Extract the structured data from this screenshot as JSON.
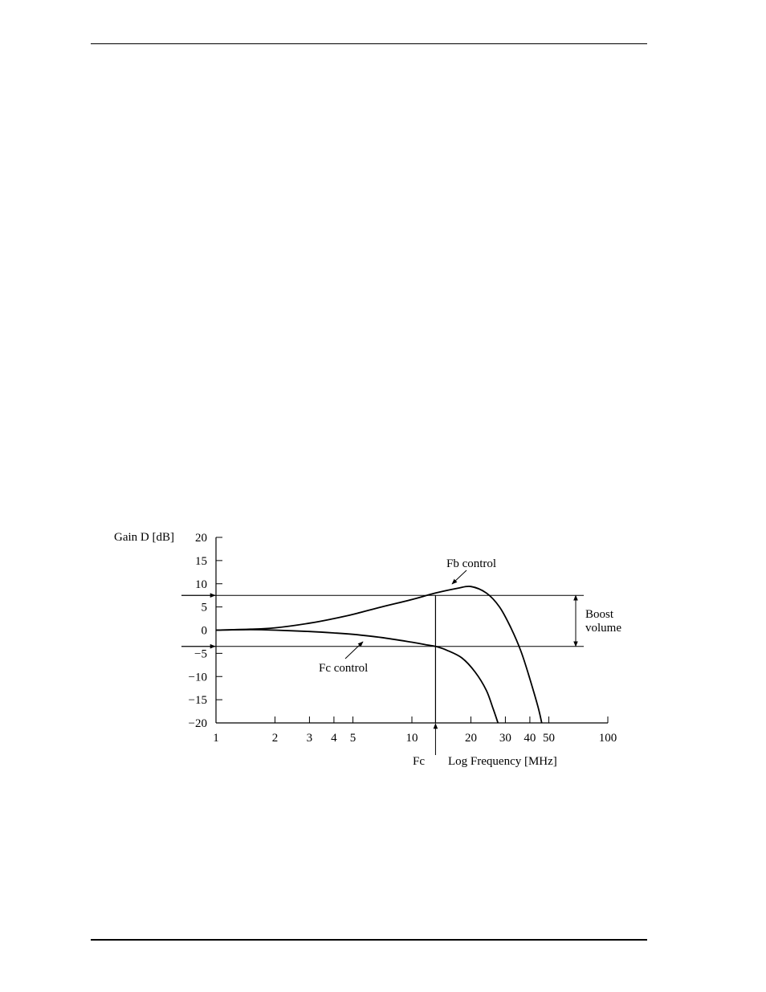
{
  "chart_data": {
    "type": "line",
    "title": "",
    "ylabel": "Gain D [dB]",
    "xlabel": "Log Frequency [MHz]",
    "x_scale": "log",
    "xlim": [
      1,
      100
    ],
    "ylim": [
      -20,
      20
    ],
    "x_ticks": [
      1,
      2,
      3,
      4,
      5,
      10,
      20,
      30,
      40,
      50,
      100
    ],
    "x_tick_labels": [
      "1",
      "2",
      "3",
      "4",
      "5",
      "10",
      "20",
      "30",
      "40",
      "50",
      "100"
    ],
    "y_ticks": [
      20,
      15,
      10,
      5,
      0,
      -5,
      -10,
      -15,
      -20
    ],
    "y_tick_labels": [
      "20",
      "15",
      "10",
      "5",
      "0",
      "−5",
      "−10",
      "−15",
      "−20"
    ],
    "series": [
      {
        "name": "Fb control",
        "x": [
          1,
          1.5,
          2,
          3,
          4,
          5,
          7,
          10,
          13.2,
          17,
          20,
          24,
          28,
          32,
          36,
          40,
          44,
          46
        ],
        "y": [
          0,
          0.2,
          0.5,
          1.5,
          2.5,
          3.4,
          5.0,
          6.6,
          8.0,
          9.0,
          9.4,
          8.0,
          5.0,
          0.5,
          -4.5,
          -10.5,
          -16.5,
          -20
        ]
      },
      {
        "name": "Fc control",
        "x": [
          1,
          1.5,
          2,
          3,
          4,
          5,
          7,
          10,
          12,
          13.2,
          15,
          18,
          21,
          24,
          26,
          27.5
        ],
        "y": [
          0,
          0.1,
          0,
          -0.3,
          -0.6,
          -0.9,
          -1.6,
          -2.6,
          -3.2,
          -3.5,
          -4.3,
          -6.0,
          -9.0,
          -13.0,
          -17.0,
          -20
        ]
      }
    ],
    "reference_lines": {
      "upper_y": 7.5,
      "lower_y": -3.5,
      "fc_x": 13.2
    },
    "annotations": {
      "fb_control": "Fb control",
      "fc_control": "Fc control",
      "boost_line1": "Boost",
      "boost_line2": "volume",
      "fc_marker": "Fc"
    },
    "grid": false,
    "legend": "none"
  }
}
